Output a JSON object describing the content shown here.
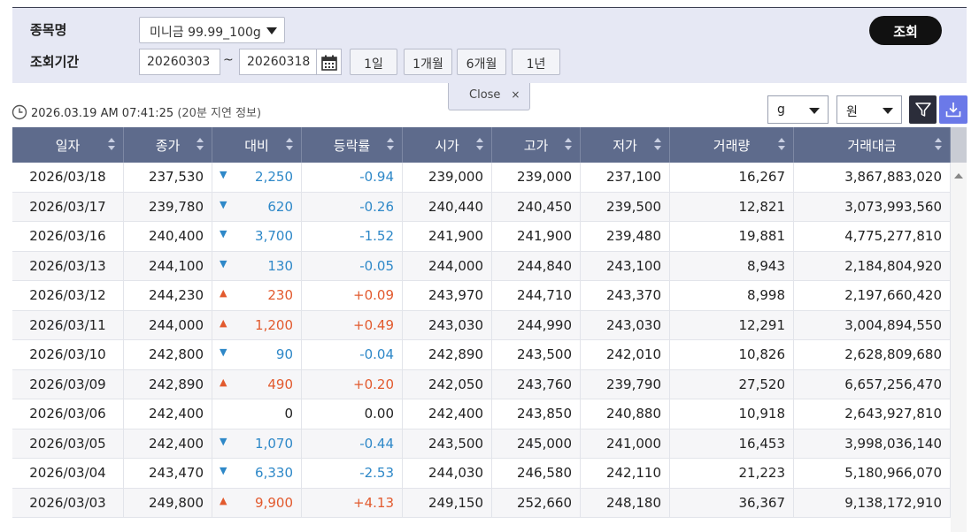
{
  "search": {
    "item_label": "종목명",
    "item_value": "미니금 99.99_100g",
    "period_label": "조회기간",
    "date_from": "20260303",
    "date_sep": "~",
    "date_to": "20260318",
    "period_buttons": [
      "1일",
      "1개월",
      "6개월",
      "1년"
    ],
    "query_button": "조회",
    "close_label": "Close",
    "close_x": "×"
  },
  "info": {
    "timestamp": "2026.03.19 AM 07:41:25",
    "delay_note": "(20분 지연 정보)",
    "unit_weight": "g",
    "unit_currency": "원"
  },
  "colors": {
    "up": "#e25a2e",
    "down": "#2e88c8",
    "header": "#5e6b8c",
    "accent": "#6b79e8"
  },
  "table": {
    "columns": [
      "일자",
      "종가",
      "대비",
      "등락률",
      "시가",
      "고가",
      "저가",
      "거래량",
      "거래대금"
    ],
    "rows": [
      {
        "date": "2026/03/18",
        "close": "237,530",
        "dir": "down",
        "arrow": "▼",
        "change": "2,250",
        "rate": "-0.94",
        "open": "239,000",
        "high": "239,000",
        "low": "237,100",
        "volume": "16,267",
        "amount": "3,867,883,020"
      },
      {
        "date": "2026/03/17",
        "close": "239,780",
        "dir": "down",
        "arrow": "▼",
        "change": "620",
        "rate": "-0.26",
        "open": "240,440",
        "high": "240,450",
        "low": "239,500",
        "volume": "12,821",
        "amount": "3,073,993,560"
      },
      {
        "date": "2026/03/16",
        "close": "240,400",
        "dir": "down",
        "arrow": "▼",
        "change": "3,700",
        "rate": "-1.52",
        "open": "241,900",
        "high": "241,900",
        "low": "239,480",
        "volume": "19,881",
        "amount": "4,775,277,810"
      },
      {
        "date": "2026/03/13",
        "close": "244,100",
        "dir": "down",
        "arrow": "▼",
        "change": "130",
        "rate": "-0.05",
        "open": "244,000",
        "high": "244,840",
        "low": "243,100",
        "volume": "8,943",
        "amount": "2,184,804,920"
      },
      {
        "date": "2026/03/12",
        "close": "244,230",
        "dir": "up",
        "arrow": "▲",
        "change": "230",
        "rate": "+0.09",
        "open": "243,970",
        "high": "244,710",
        "low": "243,370",
        "volume": "8,998",
        "amount": "2,197,660,420"
      },
      {
        "date": "2026/03/11",
        "close": "244,000",
        "dir": "up",
        "arrow": "▲",
        "change": "1,200",
        "rate": "+0.49",
        "open": "243,030",
        "high": "244,990",
        "low": "243,030",
        "volume": "12,291",
        "amount": "3,004,894,550"
      },
      {
        "date": "2026/03/10",
        "close": "242,800",
        "dir": "down",
        "arrow": "▼",
        "change": "90",
        "rate": "-0.04",
        "open": "242,890",
        "high": "243,500",
        "low": "242,010",
        "volume": "10,826",
        "amount": "2,628,809,680"
      },
      {
        "date": "2026/03/09",
        "close": "242,890",
        "dir": "up",
        "arrow": "▲",
        "change": "490",
        "rate": "+0.20",
        "open": "242,050",
        "high": "243,760",
        "low": "239,790",
        "volume": "27,520",
        "amount": "6,657,256,470"
      },
      {
        "date": "2026/03/06",
        "close": "242,400",
        "dir": "flat",
        "arrow": "",
        "change": "0",
        "rate": "0.00",
        "open": "242,400",
        "high": "243,850",
        "low": "240,880",
        "volume": "10,918",
        "amount": "2,643,927,810"
      },
      {
        "date": "2026/03/05",
        "close": "242,400",
        "dir": "down",
        "arrow": "▼",
        "change": "1,070",
        "rate": "-0.44",
        "open": "243,500",
        "high": "245,000",
        "low": "241,000",
        "volume": "16,453",
        "amount": "3,998,036,140"
      },
      {
        "date": "2026/03/04",
        "close": "243,470",
        "dir": "down",
        "arrow": "▼",
        "change": "6,330",
        "rate": "-2.53",
        "open": "244,030",
        "high": "246,580",
        "low": "242,110",
        "volume": "21,223",
        "amount": "5,180,966,070"
      },
      {
        "date": "2026/03/03",
        "close": "249,800",
        "dir": "up",
        "arrow": "▲",
        "change": "9,900",
        "rate": "+4.13",
        "open": "249,150",
        "high": "252,660",
        "low": "248,180",
        "volume": "36,367",
        "amount": "9,138,172,910"
      }
    ]
  }
}
